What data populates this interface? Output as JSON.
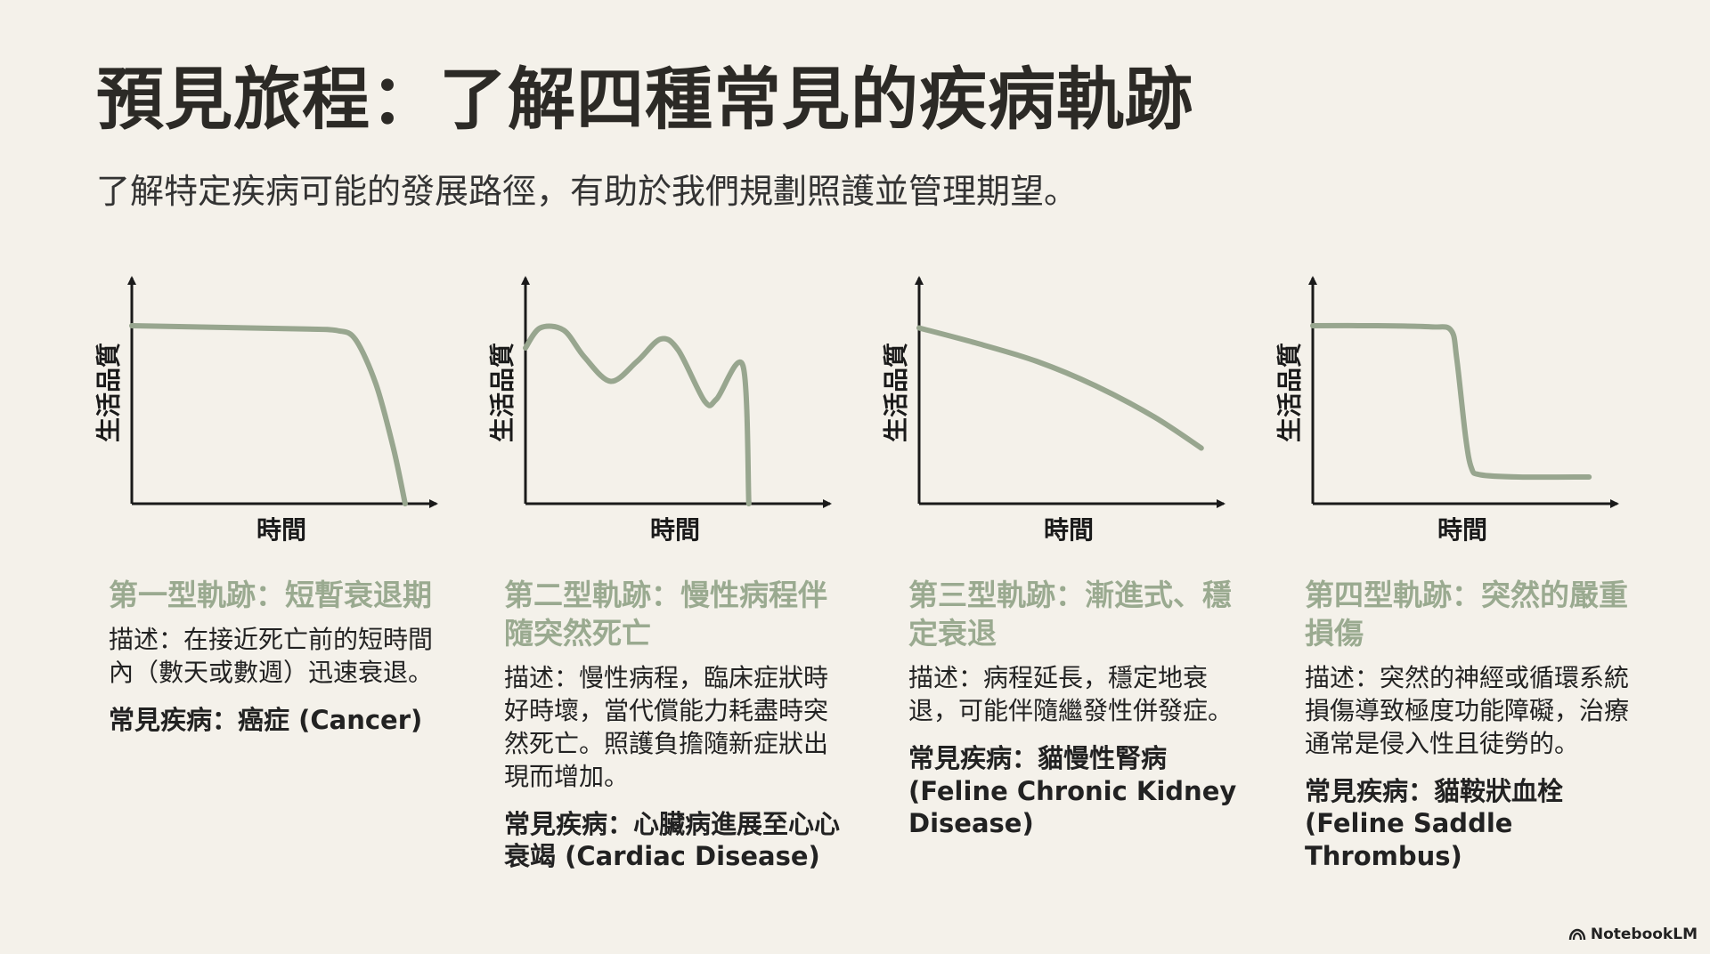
{
  "title": "預見旅程：了解四種常見的疾病軌跡",
  "subtitle": "了解特定疾病可能的發展路徑，有助於我們規劃照護並管理期望。",
  "brand": {
    "name": "NotebookLM",
    "icon": "notebooklm-logo-icon"
  },
  "colors": {
    "background": "#f4f1ea",
    "curve": "#98a68f",
    "heading": "#9aaa90",
    "axis": "#1a1a1a"
  },
  "panels": [
    {
      "heading": "第一型軌跡：短暫衰退期",
      "description": "描述：在接近死亡前的短時間內（數天或數週）迅速衰退。",
      "disease": "常見疾病：癌症 (Cancer)"
    },
    {
      "heading": "第二型軌跡：慢性病程伴隨突然死亡",
      "description": "描述：慢性病程，臨床症狀時好時壞，當代償能力耗盡時突然死亡。照護負擔隨新症狀出現而增加。",
      "disease": "常見疾病：心臟病進展至心心衰竭 (Cardiac Disease)"
    },
    {
      "heading": "第三型軌跡：漸進式、穩定衰退",
      "description": "描述：病程延長，穩定地衰退，可能伴隨繼發性併發症。",
      "disease": "常見疾病：貓慢性腎病 (Feline Chronic Kidney Disease)"
    },
    {
      "heading": "第四型軌跡：突然的嚴重損傷",
      "description": "描述：突然的神經或循環系統損傷導致極度功能障礙，治療通常是侵入性且徒勞的。",
      "disease": "常見疾病：貓鞍狀血栓 (Feline Saddle Thrombus)"
    }
  ],
  "chart_data": [
    {
      "type": "line",
      "xlabel": "時間",
      "ylabel": "生活品質",
      "xlim": [
        0,
        10
      ],
      "ylim": [
        0,
        10
      ],
      "grid": false,
      "legend": "none",
      "series": [
        {
          "x": [
            0,
            2,
            4,
            6,
            7,
            7.6,
            8.3,
            8.9,
            9.3
          ],
          "y": [
            8,
            7.95,
            7.9,
            7.85,
            7.78,
            7.4,
            5.4,
            2.5,
            0
          ]
        }
      ]
    },
    {
      "type": "line",
      "xlabel": "時間",
      "ylabel": "生活品質",
      "xlim": [
        0,
        10
      ],
      "ylim": [
        0,
        10
      ],
      "grid": false,
      "legend": "none",
      "series": [
        {
          "x": [
            0,
            0.5,
            1.3,
            2,
            2.9,
            3.8,
            4.6,
            5.2,
            6.1,
            6.5,
            7.4,
            7.6
          ],
          "y": [
            7,
            7.9,
            7.8,
            6.6,
            5.5,
            6.4,
            7.4,
            6.9,
            4.6,
            4.7,
            6.2,
            0
          ]
        }
      ]
    },
    {
      "type": "line",
      "xlabel": "時間",
      "ylabel": "生活品質",
      "xlim": [
        0,
        10
      ],
      "ylim": [
        0,
        10
      ],
      "grid": false,
      "legend": "none",
      "series": [
        {
          "x": [
            0,
            2,
            4,
            6,
            8,
            9.6
          ],
          "y": [
            7.9,
            7.2,
            6.4,
            5.3,
            3.9,
            2.5
          ]
        }
      ]
    },
    {
      "type": "line",
      "xlabel": "時間",
      "ylabel": "生活品質",
      "xlim": [
        0,
        10
      ],
      "ylim": [
        0,
        10
      ],
      "grid": false,
      "legend": "none",
      "series": [
        {
          "x": [
            0,
            2,
            4,
            4.7,
            4.9,
            5.2,
            5.4,
            5.7,
            7,
            9.4
          ],
          "y": [
            8,
            8,
            7.95,
            7.8,
            6.5,
            3,
            1.6,
            1.3,
            1.2,
            1.2
          ]
        }
      ]
    }
  ]
}
